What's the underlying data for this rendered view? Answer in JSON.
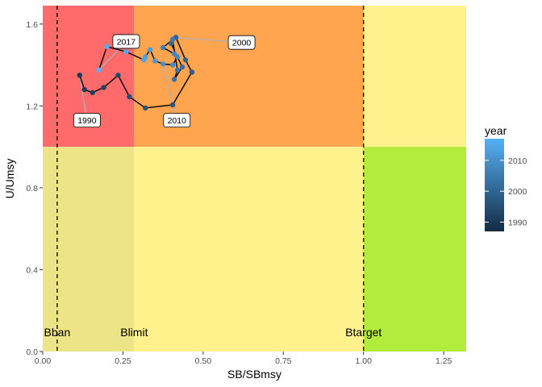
{
  "chart_data": {
    "type": "scatter",
    "title": "",
    "xlabel": "SB/SBmsy",
    "ylabel": "U/Umsy",
    "xlim": [
      0,
      1.32
    ],
    "ylim": [
      0,
      1.69
    ],
    "xticks": [
      0.0,
      0.25,
      0.5,
      0.75,
      1.0,
      1.25
    ],
    "xtick_labels": [
      "0.00",
      "0.25",
      "0.50",
      "0.75",
      "1.00",
      "1.25"
    ],
    "yticks": [
      0.0,
      0.4,
      0.8,
      1.2,
      1.6
    ],
    "ytick_labels": [
      "0.0",
      "0.4",
      "0.8",
      "1.2",
      "1.6"
    ],
    "grid": false,
    "zones": [
      {
        "x": [
          0,
          0.285
        ],
        "y": [
          1.0,
          1.69
        ],
        "color": "#FF6B6B"
      },
      {
        "x": [
          0.285,
          1.0
        ],
        "y": [
          1.0,
          1.69
        ],
        "color": "#FFA44F"
      },
      {
        "x": [
          1.0,
          1.32
        ],
        "y": [
          1.0,
          1.69
        ],
        "color": "#FFF28C"
      },
      {
        "x": [
          0,
          0.285
        ],
        "y": [
          0,
          1.0
        ],
        "color": "#EDE387"
      },
      {
        "x": [
          0.285,
          1.0
        ],
        "y": [
          0,
          1.0
        ],
        "color": "#FFF28C"
      },
      {
        "x": [
          1.0,
          1.32
        ],
        "y": [
          0,
          1.0
        ],
        "color": "#B4EC3E"
      }
    ],
    "reference_lines": [
      {
        "name": "Bban",
        "x": 0.045,
        "dashed": true
      },
      {
        "name": "Blimit",
        "x": 0.285,
        "dashed": false
      },
      {
        "name": "Btarget",
        "x": 1.0,
        "dashed": true
      }
    ],
    "reference_label_y": 0.095,
    "series": [
      {
        "years": [
          1990,
          1991,
          1992,
          1993,
          1994,
          1995,
          1996,
          1997,
          1998,
          1999,
          2000,
          2001,
          2002,
          2003,
          2004,
          2005,
          2006,
          2007,
          2008,
          2009,
          2010,
          2011,
          2012,
          2013,
          2014,
          2015,
          2016,
          2017
        ],
        "x": [
          0.115,
          0.13,
          0.155,
          0.19,
          0.235,
          0.27,
          0.32,
          0.405,
          0.465,
          0.445,
          0.415,
          0.4,
          0.435,
          0.41,
          0.42,
          0.405,
          0.375,
          0.41,
          0.42,
          0.405,
          0.375,
          0.35,
          0.335,
          0.32,
          0.315,
          0.26,
          0.2,
          0.175
        ],
        "y": [
          1.35,
          1.28,
          1.265,
          1.29,
          1.35,
          1.245,
          1.19,
          1.205,
          1.365,
          1.425,
          1.535,
          1.505,
          1.39,
          1.33,
          1.375,
          1.525,
          1.485,
          1.455,
          1.44,
          1.4,
          1.405,
          1.42,
          1.475,
          1.44,
          1.425,
          1.465,
          1.49,
          1.375
        ]
      }
    ],
    "point_labels": [
      {
        "year": "1990",
        "x": 0.115,
        "y": 1.35,
        "lx": 0.138,
        "ly": 1.13
      },
      {
        "year": "2000",
        "x": 0.415,
        "y": 1.535,
        "lx": 0.62,
        "ly": 1.51
      },
      {
        "year": "2010",
        "x": 0.375,
        "y": 1.405,
        "lx": 0.418,
        "ly": 1.13
      },
      {
        "year": "2017",
        "x": 0.175,
        "y": 1.375,
        "lx": 0.26,
        "ly": 1.515
      }
    ],
    "legend": {
      "title": "year",
      "placement": "right",
      "range": [
        1987,
        2017
      ],
      "ticks": [
        1990,
        2000,
        2010
      ],
      "tick_labels": [
        "1990",
        "2000",
        "2010"
      ],
      "color_low": "#132B43",
      "color_high": "#56B1F7"
    }
  }
}
